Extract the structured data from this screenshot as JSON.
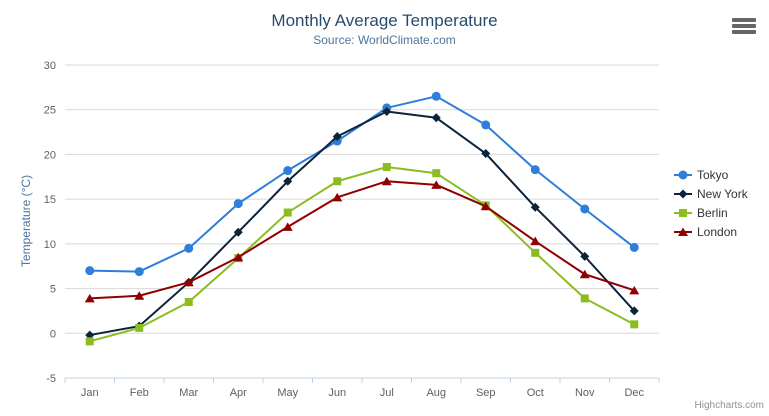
{
  "chart_data": {
    "type": "line",
    "title": "Monthly Average Temperature",
    "subtitle": "Source: WorldClimate.com",
    "xlabel": "",
    "ylabel": "Temperature (°C)",
    "ylim": [
      -5,
      30
    ],
    "yticks": [
      -5,
      0,
      5,
      10,
      15,
      20,
      25,
      30
    ],
    "grid": "horizontal gridlines on",
    "legend_position": "right",
    "categories": [
      "Jan",
      "Feb",
      "Mar",
      "Apr",
      "May",
      "Jun",
      "Jul",
      "Aug",
      "Sep",
      "Oct",
      "Nov",
      "Dec"
    ],
    "series": [
      {
        "name": "Tokyo",
        "color": "#2f7ed8",
        "marker": "circle",
        "values": [
          7.0,
          6.9,
          9.5,
          14.5,
          18.2,
          21.5,
          25.2,
          26.5,
          23.3,
          18.3,
          13.9,
          9.6
        ]
      },
      {
        "name": "New York",
        "color": "#0d233a",
        "marker": "diamond",
        "values": [
          -0.2,
          0.8,
          5.7,
          11.3,
          17.0,
          22.0,
          24.8,
          24.1,
          20.1,
          14.1,
          8.6,
          2.5
        ]
      },
      {
        "name": "Berlin",
        "color": "#8bbc21",
        "marker": "square",
        "values": [
          -0.9,
          0.6,
          3.5,
          8.4,
          13.5,
          17.0,
          18.6,
          17.9,
          14.3,
          9.0,
          3.9,
          1.0
        ]
      },
      {
        "name": "London",
        "color": "#910000",
        "marker": "triangle",
        "values": [
          3.9,
          4.2,
          5.7,
          8.5,
          11.9,
          15.2,
          17.0,
          16.6,
          14.2,
          10.3,
          6.6,
          4.8
        ]
      }
    ],
    "style": {
      "title_color": "#274b6d",
      "subtitle_color": "#4d759e",
      "axis_title_color": "#4d759e",
      "tick_label_color": "#606060",
      "legend_text_color": "#333333",
      "grid_color": "#d8d8d8",
      "axis_line_color": "#c0d0e0",
      "menu_icon_color": "#666666",
      "credits_color": "#909090",
      "background": "#ffffff"
    }
  },
  "credits": {
    "label": "Highcharts.com"
  },
  "icons": {
    "context_menu": "hamburger-icon"
  }
}
